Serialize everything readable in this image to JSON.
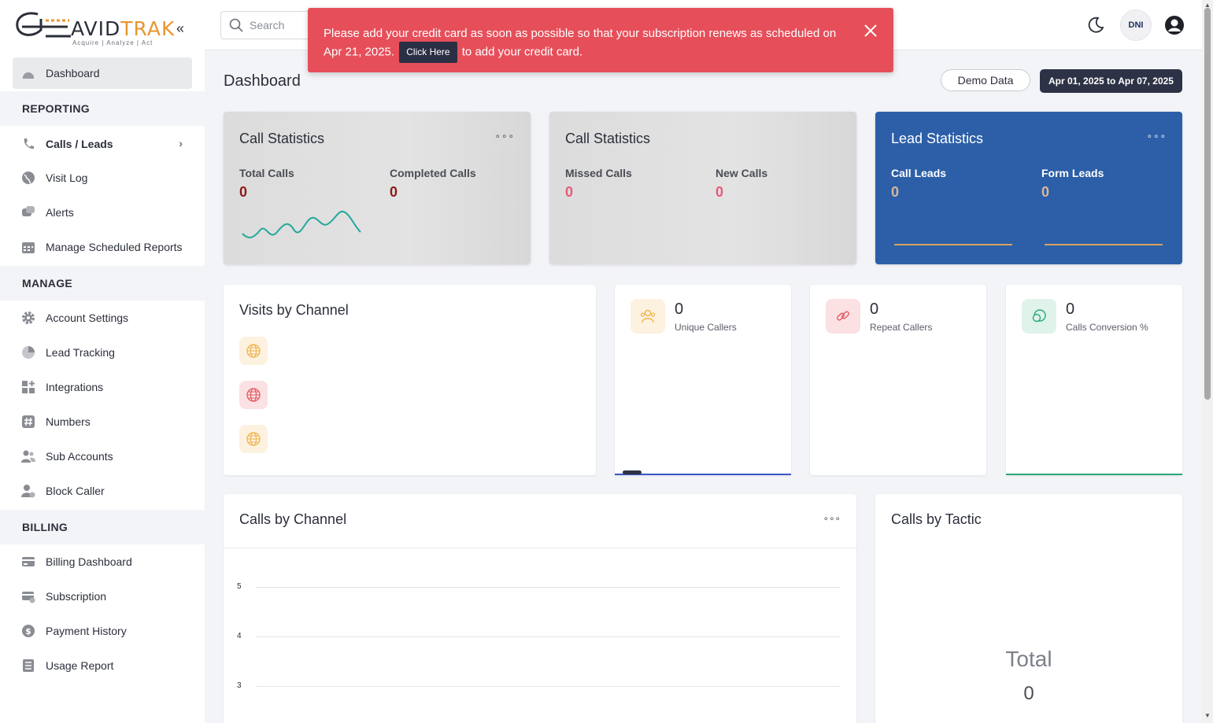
{
  "brand": {
    "name_prefix": "AVID",
    "name_suffix": "TRAK",
    "tagline": "Acquire  |  Analyze  |  Act"
  },
  "sidebar": {
    "dashboard": "Dashboard",
    "sections": {
      "reporting": "REPORTING",
      "manage": "MANAGE",
      "billing": "BILLING"
    },
    "reporting_items": [
      "Calls / Leads",
      "Visit Log",
      "Alerts",
      "Manage Scheduled Reports"
    ],
    "manage_items": [
      "Account Settings",
      "Lead Tracking",
      "Integrations",
      "Numbers",
      "Sub Accounts",
      "Block Caller"
    ],
    "billing_items": [
      "Billing Dashboard",
      "Subscription",
      "Payment History",
      "Usage Report"
    ]
  },
  "header": {
    "search_placeholder": "Search",
    "dni_label": "DNI"
  },
  "alert": {
    "text_before": "Please add your credit card as soon as possible so that your subscription renews as scheduled on Apr 21, 2025.",
    "button": "Click Here",
    "text_after": "to add your credit card."
  },
  "main": {
    "title": "Dashboard",
    "demo_button": "Demo Data",
    "date_range": "Apr 01, 2025 to Apr 07, 2025"
  },
  "stat_cards": [
    {
      "title": "Call Statistics",
      "metrics": [
        {
          "label": "Total Calls",
          "value": "0"
        },
        {
          "label": "Completed Calls",
          "value": "0"
        }
      ]
    },
    {
      "title": "Call Statistics",
      "metrics": [
        {
          "label": "Missed Calls",
          "value": "0"
        },
        {
          "label": "New Calls",
          "value": "0"
        }
      ]
    },
    {
      "title": "Lead Statistics",
      "metrics": [
        {
          "label": "Call Leads",
          "value": "0"
        },
        {
          "label": "Form Leads",
          "value": "0"
        }
      ]
    }
  ],
  "visits_by_channel": {
    "title": "Visits by Channel"
  },
  "mini_stats": [
    {
      "value": "0",
      "label": "Unique Callers"
    },
    {
      "value": "0",
      "label": "Repeat Callers"
    },
    {
      "value": "0",
      "label": "Calls Conversion %"
    }
  ],
  "calls_by_channel": {
    "title": "Calls by Channel",
    "y_ticks": [
      "5",
      "4",
      "3"
    ]
  },
  "calls_by_tactic": {
    "title": "Calls by Tactic",
    "total_label": "Total",
    "total_value": "0"
  },
  "colors": {
    "alert_bg": "#e64f5a",
    "lead_card_bg": "#2c5fa8",
    "date_button_bg": "#2e3246",
    "brand_accent": "#e8962f"
  }
}
